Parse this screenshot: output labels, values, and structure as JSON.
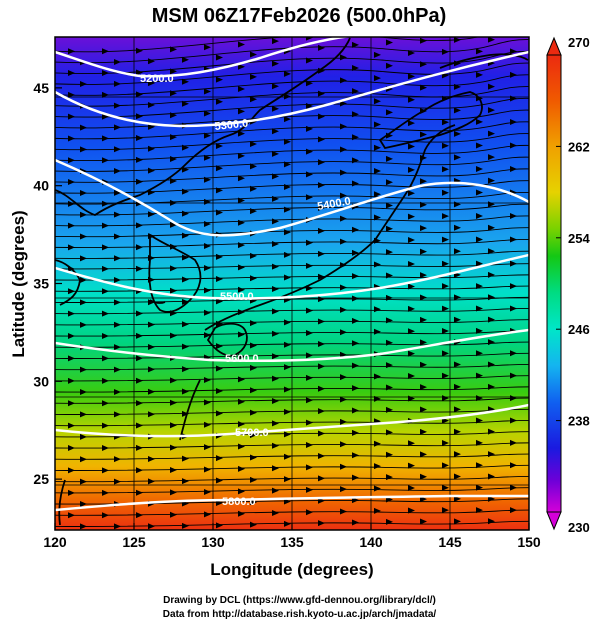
{
  "title": "MSM 06Z17Feb2026 (500.0hPa)",
  "x_axis": {
    "label": "Longitude (degrees)",
    "range": [
      120,
      150
    ],
    "ticks": [
      "120",
      "125",
      "130",
      "135",
      "140",
      "145",
      "150"
    ]
  },
  "y_axis": {
    "label": "Latitude  (degrees)",
    "range": [
      22.4,
      47.6
    ],
    "ticks": [
      "25",
      "30",
      "35",
      "40",
      "45"
    ]
  },
  "colorbar": {
    "ticks": [
      "270",
      "262",
      "254",
      "246",
      "238",
      "230"
    ],
    "min": 230,
    "max": 270,
    "colors": [
      "#d400d8",
      "#6c00d8",
      "#1a1ae0",
      "#1060f0",
      "#14b4f0",
      "#00e6c8",
      "#00dc82",
      "#14c814",
      "#7ad200",
      "#e6d200",
      "#f0a000",
      "#f05a00",
      "#ec2a10"
    ]
  },
  "contours": [
    {
      "label": "5200.0"
    },
    {
      "label": "5300.0"
    },
    {
      "label": "5400.0"
    },
    {
      "label": "5500.0"
    },
    {
      "label": "5600.0"
    },
    {
      "label": "5700.0"
    },
    {
      "label": "5800.0"
    }
  ],
  "footer": {
    "line1": "Drawing by DCL (https://www.gfd-dennou.org/library/dcl/)",
    "line2": "Data from http://database.rish.kyoto-u.ac.jp/arch/jmadata/"
  }
}
